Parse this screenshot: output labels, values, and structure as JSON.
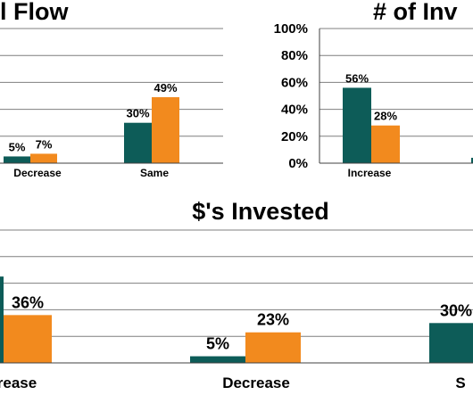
{
  "colors": {
    "series1": "#0d5c58",
    "series2": "#f28a1e",
    "grid": "#7f7f7f",
    "axis": "#404040"
  },
  "chart_data": [
    {
      "type": "bar",
      "title": "l Flow",
      "categories": [
        "Decrease",
        "Same"
      ],
      "series": [
        {
          "values": [
            5,
            30
          ],
          "labels": [
            "5%",
            "30%"
          ]
        },
        {
          "values": [
            7,
            49
          ],
          "labels": [
            "7%",
            "49%"
          ]
        }
      ],
      "ylim": [
        0,
        100
      ],
      "grid": true
    },
    {
      "type": "bar",
      "title": "# of Inv",
      "categories": [
        "Increase"
      ],
      "series": [
        {
          "values": [
            56
          ],
          "labels": [
            "56%"
          ]
        },
        {
          "values": [
            28
          ],
          "labels": [
            "28%"
          ]
        }
      ],
      "yticks": [
        "0%",
        "20%",
        "40%",
        "60%",
        "80%",
        "100%"
      ],
      "ylim": [
        0,
        100
      ],
      "grid": true
    },
    {
      "type": "bar",
      "title": "$'s Invested",
      "categories": [
        "rease",
        "Decrease",
        "S"
      ],
      "series": [
        {
          "values": [
            65,
            5,
            30
          ],
          "labels": [
            "",
            "5%",
            "30%"
          ]
        },
        {
          "values": [
            36,
            23,
            null
          ],
          "labels": [
            "36%",
            "23%",
            ""
          ]
        }
      ],
      "ylim": [
        0,
        100
      ],
      "grid": true
    }
  ]
}
